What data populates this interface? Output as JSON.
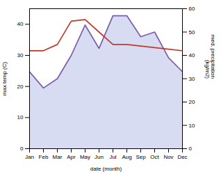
{
  "chart_data": {
    "type": "line",
    "xlabel": "date (month)",
    "ylabel": "max temp (C)",
    "y2label": "med. precipitation\n(kg/m2)",
    "categories": [
      "Jan",
      "Feb",
      "Mar",
      "Apr",
      "May",
      "Jun",
      "Jul",
      "Aug",
      "Sep",
      "Oct",
      "Nov",
      "Dec"
    ],
    "ylim": [
      0,
      45
    ],
    "yticks": [
      0,
      10,
      20,
      30,
      40
    ],
    "y2lim": [
      0,
      60
    ],
    "y2ticks": [
      0,
      10,
      20,
      30,
      40,
      50,
      60
    ],
    "series": [
      {
        "type": "area",
        "axis": "y2",
        "color": "#b8c0e8",
        "values": [
          33.0,
          26.0,
          30.0,
          40.0,
          53.0,
          43.0,
          57.0,
          57.0,
          48.0,
          50.0,
          39.0,
          33.0
        ]
      },
      {
        "type": "line",
        "axis": "y2",
        "color": "#7b5ea7",
        "values": [
          33.0,
          26.0,
          30.0,
          40.0,
          53.0,
          43.0,
          57.0,
          57.0,
          48.0,
          50.0,
          39.0,
          33.0
        ]
      },
      {
        "type": "line",
        "color": "#c0392b",
        "values": [
          31.5,
          31.5,
          33.5,
          41.0,
          41.5,
          37.5,
          33.5,
          33.5,
          33.0,
          32.5,
          32.0,
          31.5
        ]
      }
    ]
  }
}
